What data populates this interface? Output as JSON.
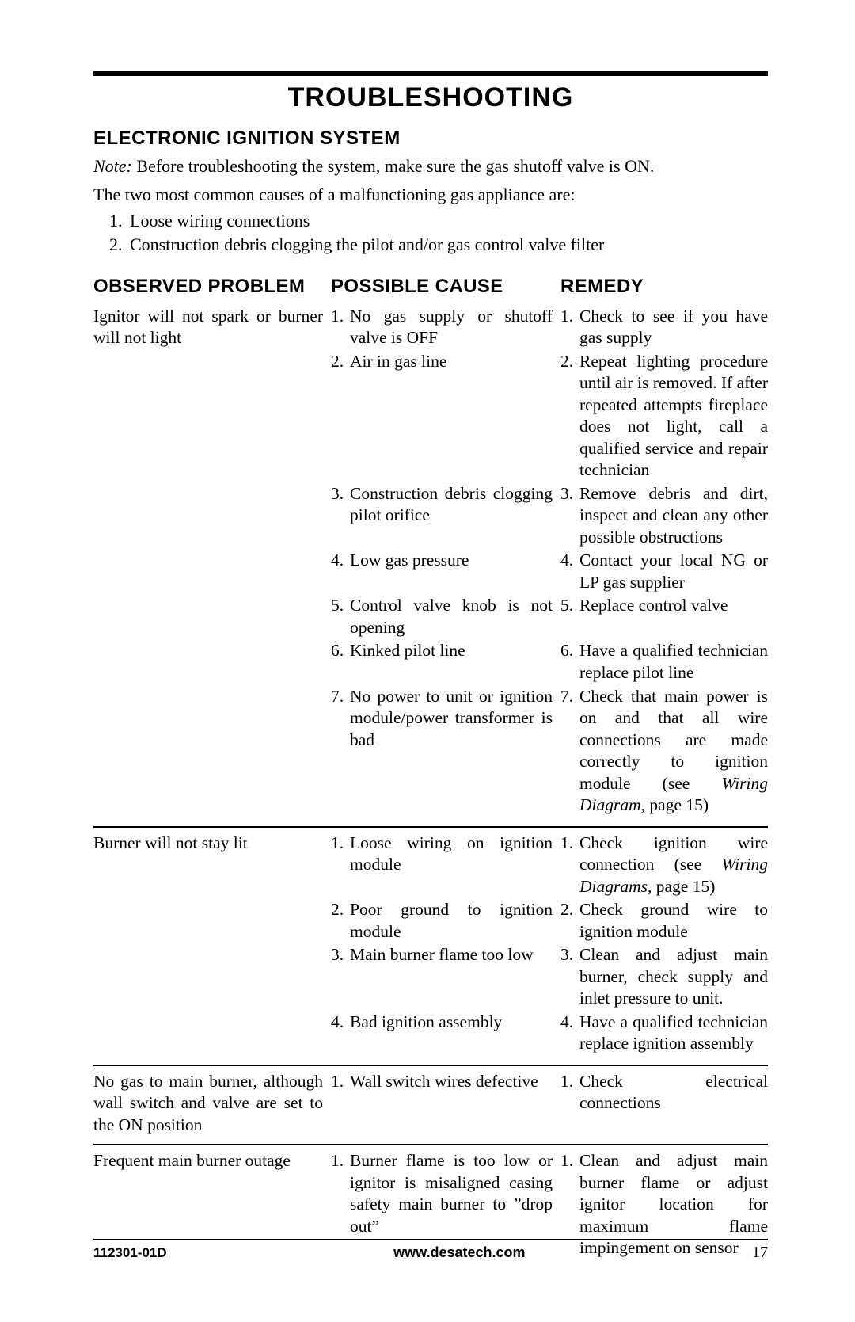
{
  "page": {
    "title": "TROUBLESHOOTING",
    "section_heading": "ELECTRONIC IGNITION SYSTEM",
    "note_label": "Note:",
    "note_text": "Before troubleshooting the system, make sure the gas shutoff valve is ON.",
    "intro": "The two most common causes of a malfunctioning gas appliance are:",
    "common_causes": [
      "Loose wiring connections",
      "Construction debris clogging the pilot and/or gas control valve filter"
    ],
    "columns": {
      "problem": "OBSERVED PROBLEM",
      "cause": "POSSIBLE CAUSE",
      "remedy": "REMEDY"
    },
    "rows": [
      {
        "problem": "Ignitor will not spark or burner will not light",
        "items": [
          {
            "cause": "No gas supply or shutoff valve is OFF",
            "remedy": "Check to see if you have gas supply"
          },
          {
            "cause": "Air in gas line",
            "remedy": "Repeat lighting procedure until air is removed. If after repeated attempts fireplace does not light, call a qualified service and repair technician"
          },
          {
            "cause": "Construction debris clogging pilot orifice",
            "remedy": "Remove debris and dirt, inspect and clean any other possible obstructions"
          },
          {
            "cause": "Low gas pressure",
            "remedy": "Contact your local NG or LP gas supplier"
          },
          {
            "cause": "Control valve knob is not opening",
            "remedy": "Replace control valve"
          },
          {
            "cause": "Kinked pilot line",
            "remedy": "Have a qualified technician replace pilot line"
          },
          {
            "cause": "No power to unit or ignition module/power transformer is bad",
            "remedy_pre": "Check that main power is on and that all wire connections are made correctly to ignition module (see ",
            "remedy_ital": "Wiring Diagram",
            "remedy_post": ", page 15)"
          }
        ]
      },
      {
        "problem": "Burner will not stay lit",
        "items": [
          {
            "cause": "Loose wiring on ignition module",
            "remedy_pre": "Check ignition wire connection (see ",
            "remedy_ital": "Wiring Diagrams",
            "remedy_post": ", page 15)"
          },
          {
            "cause": "Poor ground to ignition module",
            "remedy": "Check ground wire to ignition module"
          },
          {
            "cause": "Main burner flame too low",
            "remedy": "Clean and adjust main burner, check supply and inlet pressure to unit."
          },
          {
            "cause": "Bad ignition assembly",
            "remedy": "Have a qualified technician replace ignition assembly"
          }
        ]
      },
      {
        "problem": "No gas to main burner, although wall switch and valve are set to the ON position",
        "items": [
          {
            "cause": "Wall switch wires defective",
            "remedy": "Check electrical connections"
          }
        ]
      },
      {
        "problem": "Frequent main burner outage",
        "items": [
          {
            "cause": "Burner flame is too low or ignitor is misaligned casing safety main burner to ”drop out”",
            "remedy": "Clean and adjust main burner flame or adjust ignitor location for maximum flame impingement on sensor"
          }
        ]
      }
    ],
    "footer": {
      "doc_id": "112301-01D",
      "url": "www.desatech.com",
      "page_no": "17"
    }
  }
}
